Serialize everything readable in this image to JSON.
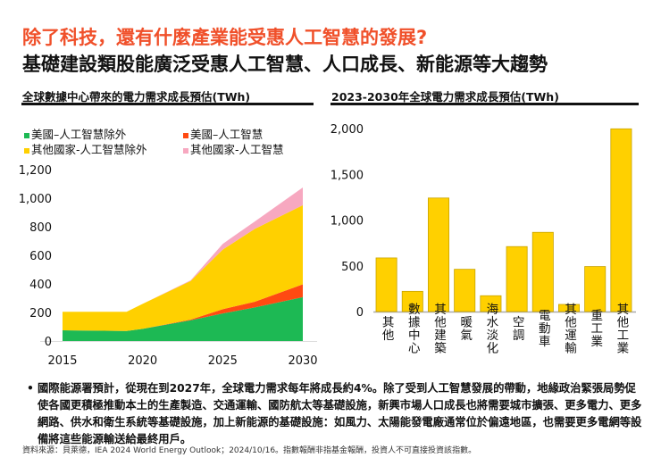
{
  "header": {
    "title": "除了科技，還有什麼產業能受惠人工智慧的發展?",
    "subtitle": "基礎建設類股能廣泛受惠人工智慧、人口成長、新能源等大趨勢"
  },
  "chart_data": [
    {
      "type": "area",
      "stacked": true,
      "title": "全球數據中心帶來的電力需求成長預估(TWh)",
      "x": [
        2015,
        2019,
        2020,
        2023,
        2025,
        2027,
        2030
      ],
      "xticks": [
        "2015",
        "2020",
        "2025",
        "2030"
      ],
      "yticks": [
        "0",
        "200",
        "400",
        "600",
        "800",
        "1,000",
        "1,200"
      ],
      "ylim": [
        0,
        1200
      ],
      "xlim": [
        2015,
        2030
      ],
      "grid": false,
      "legend": "top-left",
      "series": [
        {
          "name": "美國–人工智慧除外",
          "color": "#1db954",
          "values": [
            75,
            70,
            85,
            145,
            193,
            235,
            307
          ]
        },
        {
          "name": "美國–人工智慧",
          "color": "#ff4a12",
          "values": [
            0,
            0,
            0,
            5,
            30,
            40,
            90
          ]
        },
        {
          "name": "其他國家-人工智慧除外",
          "color": "#ffd000",
          "values": [
            130,
            135,
            175,
            270,
            417,
            510,
            554
          ]
        },
        {
          "name": "其他國家-人工智慧",
          "color": "#f7a8c0",
          "values": [
            0,
            0,
            0,
            5,
            40,
            52,
            124
          ]
        }
      ]
    },
    {
      "type": "bar",
      "title": "2023-2030年全球電力需求成長預估(TWh)",
      "categories": [
        "其他",
        "數據中心",
        "其他建築",
        "暖氣",
        "海水淡化",
        "空調",
        "電動車",
        "其他運輸",
        "重工業",
        "其他工業"
      ],
      "values": [
        586,
        221,
        1241,
        462,
        173,
        710,
        866,
        78,
        492,
        1997
      ],
      "yticks": [
        "0",
        "500",
        "1,000",
        "1,500",
        "2,000"
      ],
      "ylim": [
        0,
        2000
      ],
      "grid": false,
      "color": "#ffd000"
    }
  ],
  "notes": {
    "bullet": "國際能源署預計，從現在到2027年，全球電力需求每年將成長約4%。除了受到人工智慧發展的帶動，地緣政治緊張局勢促使各國更積極推動本土的生產製造、交通運輸、國防航太等基礎設施，新興市場人口成長也將需要城市擴張、更多電力、更多網路、供水和衛生系統等基礎設施，加上新能源的基礎設施：如風力、太陽能發電廠通常位於偏遠地區，也需要更多電網等設備將這些能源輸送給最終用戶。",
    "bullet_mark": "•",
    "source": "資料來源：貝萊德，IEA 2024 World Energy Outlook；2024/10/16。指數報酬非指基金報酬，投資人不可直接投資該指數。"
  }
}
